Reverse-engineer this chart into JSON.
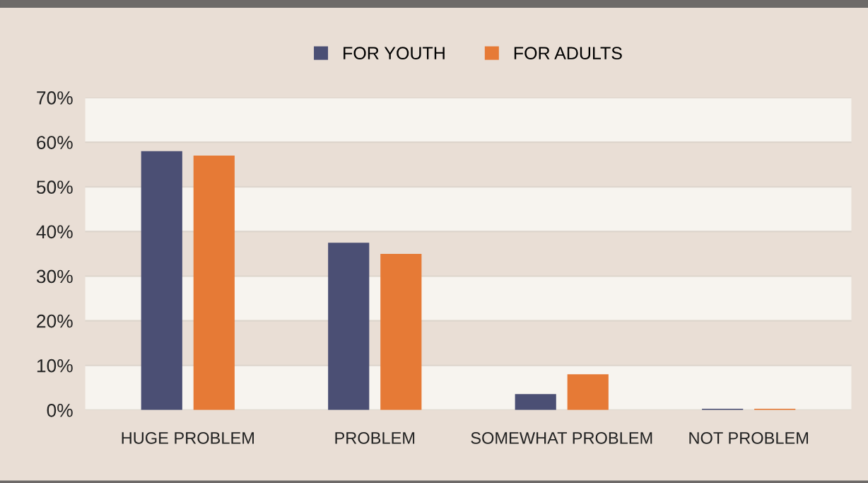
{
  "chart_data": {
    "type": "bar",
    "categories": [
      "HUGE PROBLEM",
      "PROBLEM",
      "SOMEWHAT PROBLEM",
      "NOT PROBLEM"
    ],
    "series": [
      {
        "name": "FOR YOUTH",
        "color": "#4b4f74",
        "values": [
          58,
          37.5,
          3.6,
          0.3
        ]
      },
      {
        "name": "FOR ADULTS",
        "color": "#e67a36",
        "values": [
          57,
          35,
          8,
          0.3
        ]
      }
    ],
    "ylim": [
      0,
      70
    ],
    "yticks": [
      {
        "value": 0,
        "label": "0%"
      },
      {
        "value": 10,
        "label": "10%"
      },
      {
        "value": 20,
        "label": "20%"
      },
      {
        "value": 30,
        "label": "30%"
      },
      {
        "value": 40,
        "label": "40%"
      },
      {
        "value": 50,
        "label": "50%"
      },
      {
        "value": 60,
        "label": "60%"
      },
      {
        "value": 70,
        "label": "70%"
      }
    ],
    "grid": "y",
    "legend": "top"
  }
}
